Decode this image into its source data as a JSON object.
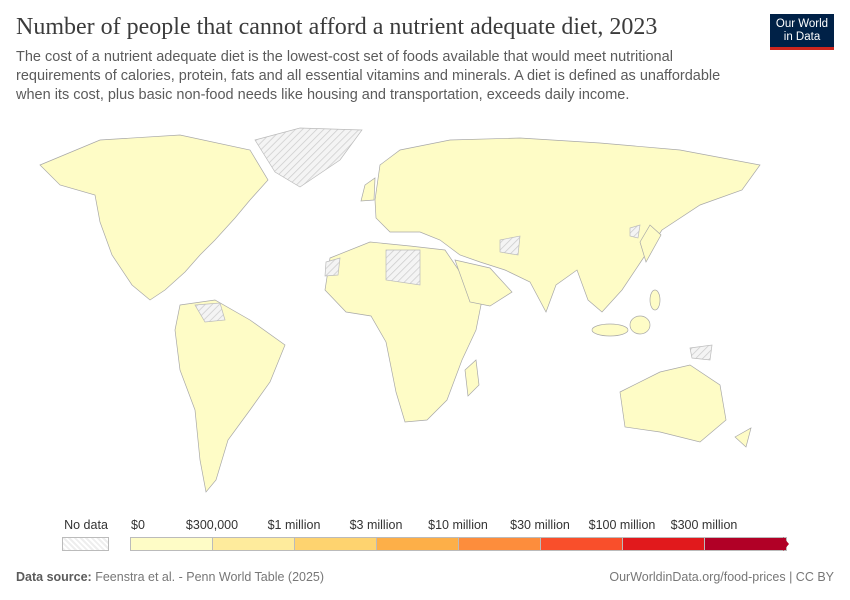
{
  "header": {
    "title": "Number of people that cannot afford a nutrient adequate diet, 2023",
    "subtitle": "The cost of a nutrient adequate diet is the lowest-cost set of foods available that would meet nutritional requirements of calories, protein, fats and all essential vitamins and minerals. A diet is defined as unaffordable when its cost, plus basic non-food needs like housing and transportation, exceeds daily income.",
    "logo": "Our World in Data"
  },
  "legend": {
    "no_data_label": "No data",
    "labels": [
      "$0",
      "$300,000",
      "$1 million",
      "$3 million",
      "$10 million",
      "$30 million",
      "$100 million",
      "$300 million"
    ],
    "colors": [
      "#fefcc6",
      "#feeb9c",
      "#fed36f",
      "#fdaf48",
      "#fd8d3c",
      "#f94f2b",
      "#e1191c",
      "#b10026"
    ],
    "no_data_color": "#eeeeee"
  },
  "map": {
    "country_fill": "#fefcc6",
    "border": "#a8a8a8",
    "no_data_regions": [
      "Greenland",
      "Libya",
      "Afghanistan",
      "Venezuela",
      "Western Sahara",
      "North Korea",
      "Papua New Guinea",
      "Somalia"
    ]
  },
  "footer": {
    "source_label": "Data source:",
    "source": "Feenstra et al. - Penn World Table (2025)",
    "link": "OurWorldinData.org/food-prices",
    "license": "CC BY"
  }
}
